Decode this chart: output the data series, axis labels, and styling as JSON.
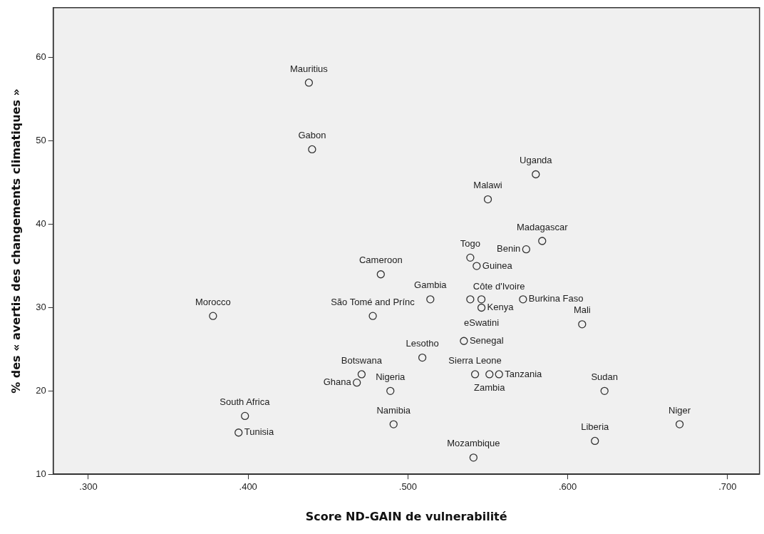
{
  "chart_data": {
    "type": "scatter",
    "xlabel": "Score ND-GAIN de vulnerabilité",
    "ylabel": "% des « avertis des changements climatiques »",
    "x": [
      0.438,
      0.44,
      0.58,
      0.55,
      0.584,
      0.574,
      0.539,
      0.543,
      0.483,
      0.514,
      0.539,
      0.546,
      0.546,
      0.572,
      0.378,
      0.609,
      0.478,
      0.535,
      0.509,
      0.471,
      0.468,
      0.489,
      0.542,
      0.551,
      0.557,
      0.623,
      0.398,
      0.394,
      0.491,
      0.67,
      0.617,
      0.541
    ],
    "values": [
      57,
      49,
      46,
      43,
      38,
      37,
      36,
      35,
      34,
      31,
      31,
      31,
      30,
      31,
      29,
      28,
      29,
      26,
      24,
      22,
      21,
      20,
      22,
      22,
      22,
      20,
      17,
      15,
      16,
      16,
      14,
      12
    ],
    "value_labels": [
      "Mauritius",
      "Gabon",
      "Uganda",
      "Malawi",
      "Madagascar",
      "Benin",
      "Togo",
      "Guinea",
      "Cameroon",
      "Gambia",
      "Côte d'Ivoire",
      "eSwatini",
      "Kenya",
      "Burkina Faso",
      "Morocco",
      "Mali",
      "São Tomé and Prínc",
      "Senegal",
      "Lesotho",
      "Botswana",
      "Ghana",
      "Nigeria",
      "Sierra Leone",
      "Zambia",
      "Tanzania",
      "Sudan",
      "South Africa",
      "Tunisia",
      "Namibia",
      "Niger",
      "Liberia",
      "Mozambique"
    ],
    "color": "#333333",
    "marker": "circle",
    "grid": false,
    "xlim": [
      0.278,
      0.72
    ],
    "xticks": [
      {
        "value": 0.3,
        "label": ".300"
      },
      {
        "value": 0.4,
        "label": ".400"
      },
      {
        "value": 0.5,
        "label": ".500"
      },
      {
        "value": 0.6,
        "label": ".600"
      },
      {
        "value": 0.7,
        "label": ".700"
      }
    ],
    "ylim": [
      10,
      66
    ],
    "yticks": [
      10,
      20,
      30,
      40,
      50,
      60
    ]
  }
}
